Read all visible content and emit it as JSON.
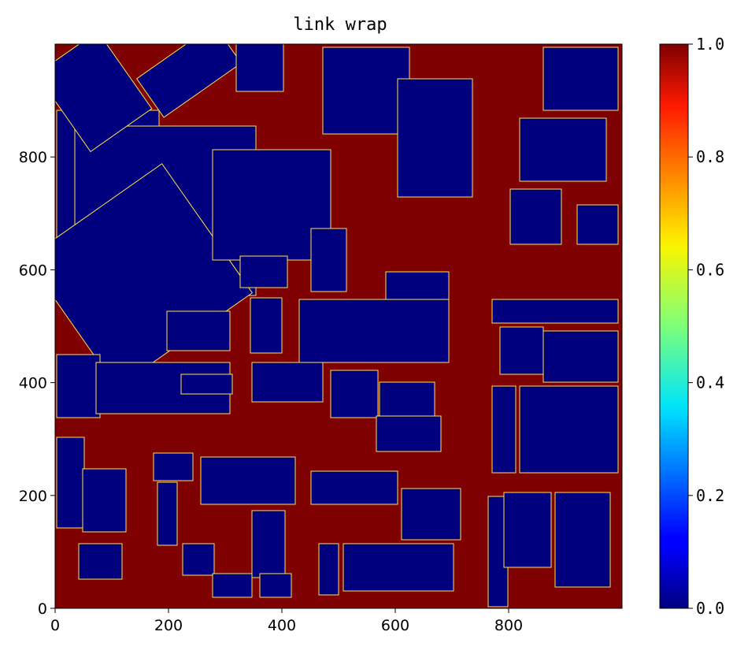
{
  "chart_data": {
    "type": "heatmap",
    "title": "link wrap",
    "xlabel": "",
    "ylabel": "",
    "xlim": [
      0,
      1000
    ],
    "ylim": [
      0,
      1000
    ],
    "x_ticks": [
      "0",
      "200",
      "400",
      "600",
      "800"
    ],
    "y_ticks": [
      "0",
      "200",
      "400",
      "600",
      "800"
    ],
    "colormap": "jet",
    "value_range": [
      0.0,
      1.0
    ],
    "colorbar": {
      "ticks": [
        "0.0",
        "0.2",
        "0.4",
        "0.6",
        "0.8",
        "1.0"
      ],
      "placement": "right"
    },
    "background_value": 1.0,
    "object_value": 0.0,
    "colors": {
      "low": "#00007f",
      "high": "#7f0000"
    }
  }
}
